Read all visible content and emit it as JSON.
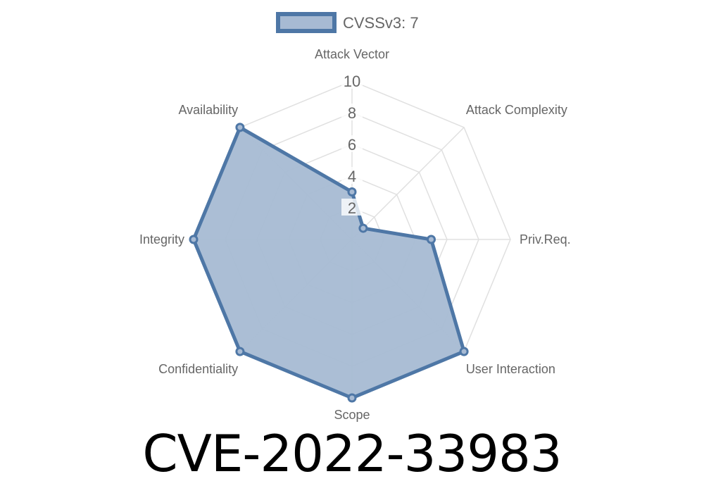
{
  "chart_data": {
    "type": "radar",
    "title": "CVE-2022-33983",
    "categories": [
      "Attack Vector",
      "Attack Complexity",
      "Priv.Req.",
      "User Interaction",
      "Scope",
      "Confidentiality",
      "Integrity",
      "Availability"
    ],
    "series": [
      {
        "name": "CVSSv3: 7",
        "values": [
          3,
          1,
          5,
          10,
          10,
          10,
          10,
          10
        ]
      }
    ],
    "rlim": [
      0,
      10
    ],
    "ticks": [
      "2",
      "4",
      "6",
      "8",
      "10"
    ],
    "tick_values": [
      2,
      4,
      6,
      8,
      10
    ],
    "grid": true,
    "legend_position": "top",
    "colors": {
      "stroke": "#4e77a6",
      "fill": "#a7bad3",
      "grid": "#e0e0e0",
      "text": "#666666"
    }
  }
}
